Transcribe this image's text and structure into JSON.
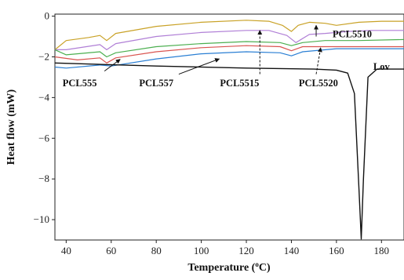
{
  "chart_data": {
    "type": "line",
    "title": "",
    "xlabel": "Temperature (°C)",
    "xlabel_parts": [
      "Temperature (",
      "o",
      "C)"
    ],
    "ylabel": "Heat flow (mW)",
    "xlim": [
      35,
      190
    ],
    "ylim": [
      -11,
      0.1
    ],
    "x_ticks": [
      40,
      60,
      80,
      100,
      120,
      140,
      160,
      180
    ],
    "x_tick_labels": [
      "40",
      "60",
      "80",
      "100",
      "120",
      "140",
      "160",
      "180"
    ],
    "y_ticks": [
      0,
      -2,
      -4,
      -6,
      -8,
      -10
    ],
    "y_tick_labels": [
      "0",
      "−2",
      "−4",
      "−6",
      "−8",
      "−10"
    ],
    "grid": false,
    "series": [
      {
        "id": "gold",
        "color": "#c9a227",
        "x": [
          35,
          40,
          50,
          55,
          58,
          62,
          80,
          100,
          120,
          130,
          136,
          140,
          143,
          148,
          155,
          160,
          170,
          180,
          190
        ],
        "y": [
          -1.65,
          -1.2,
          -1.05,
          -0.95,
          -1.2,
          -0.85,
          -0.5,
          -0.3,
          -0.2,
          -0.25,
          -0.45,
          -0.75,
          -0.45,
          -0.3,
          -0.35,
          -0.45,
          -0.3,
          -0.25,
          -0.25
        ]
      },
      {
        "id": "violet",
        "color": "#b07fd6",
        "x": [
          35,
          40,
          55,
          58,
          62,
          80,
          100,
          120,
          130,
          138,
          142,
          148,
          155,
          165,
          175,
          190
        ],
        "y": [
          -1.65,
          -1.65,
          -1.4,
          -1.65,
          -1.35,
          -1.0,
          -0.8,
          -0.7,
          -0.7,
          -0.95,
          -1.3,
          -0.9,
          -0.85,
          -0.75,
          -0.7,
          -0.7
        ]
      },
      {
        "id": "green",
        "color": "#4caf50",
        "x": [
          35,
          40,
          55,
          58,
          62,
          80,
          100,
          120,
          135,
          140,
          145,
          155,
          170,
          190
        ],
        "y": [
          -1.65,
          -1.9,
          -1.75,
          -2.0,
          -1.8,
          -1.5,
          -1.35,
          -1.25,
          -1.3,
          -1.45,
          -1.3,
          -1.2,
          -1.2,
          -1.15
        ]
      },
      {
        "id": "red",
        "color": "#d9534f",
        "x": [
          35,
          45,
          55,
          58,
          62,
          80,
          100,
          120,
          135,
          140,
          145,
          155,
          170,
          190
        ],
        "y": [
          -2.0,
          -2.15,
          -2.05,
          -2.3,
          -2.05,
          -1.75,
          -1.55,
          -1.45,
          -1.5,
          -1.7,
          -1.5,
          -1.5,
          -1.5,
          -1.5
        ]
      },
      {
        "id": "blue",
        "color": "#2a7fd4",
        "x": [
          35,
          40,
          55,
          60,
          80,
          100,
          120,
          135,
          140,
          145,
          160,
          190
        ],
        "y": [
          -2.5,
          -2.55,
          -2.4,
          -2.45,
          -2.1,
          -1.85,
          -1.75,
          -1.8,
          -1.95,
          -1.75,
          -1.6,
          -1.6
        ]
      },
      {
        "id": "black",
        "color": "#111111",
        "x": [
          35,
          80,
          120,
          150,
          160,
          165,
          168,
          170,
          171,
          172,
          174,
          178,
          190
        ],
        "y": [
          -2.3,
          -2.45,
          -2.55,
          -2.6,
          -2.65,
          -2.8,
          -3.8,
          -8.5,
          -10.95,
          -8.0,
          -3.0,
          -2.6,
          -2.6
        ]
      }
    ],
    "annotations": [
      {
        "text": "PCL555",
        "x": 46,
        "y": -3.25
      },
      {
        "text": "PCL557",
        "x": 80,
        "y": -3.25
      },
      {
        "text": "PCL5515",
        "x": 117,
        "y": -3.25
      },
      {
        "text": "PCL5520",
        "x": 152,
        "y": -3.25
      },
      {
        "text": "PCL5510",
        "x": 167,
        "y": -0.85
      },
      {
        "text": "Lov",
        "x": 180,
        "y": -2.45
      }
    ],
    "arrows": [
      {
        "id": "pcl555",
        "from": [
          57,
          -2.7
        ],
        "to": [
          64,
          -2.12
        ],
        "style": "solid"
      },
      {
        "id": "pcl557",
        "from": [
          90,
          -2.85
        ],
        "to": [
          108,
          -2.1
        ],
        "style": "solid"
      },
      {
        "id": "pcl5515",
        "from": [
          126,
          -2.85
        ],
        "to": [
          126,
          -0.7
        ],
        "style": "dashed"
      },
      {
        "id": "pcl5520",
        "from": [
          151,
          -2.85
        ],
        "to": [
          153,
          -1.55
        ],
        "style": "dashed"
      },
      {
        "id": "pcl5520-up",
        "from": [
          151,
          -1.0
        ],
        "to": [
          151,
          -0.45
        ],
        "style": "solid"
      }
    ]
  }
}
